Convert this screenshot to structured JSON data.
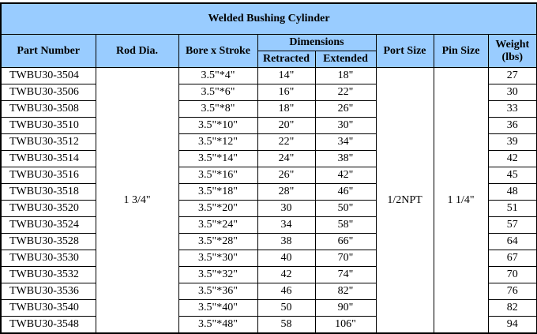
{
  "title": "Welded Bushing Cylinder",
  "headers": {
    "part_number": "Part Number",
    "rod_dia": "Rod Dia.",
    "bore_stroke": "Bore x Stroke",
    "dimensions": "Dimensions",
    "retracted": "Retracted",
    "extended": "Extended",
    "port_size": "Port Size",
    "pin_size": "Pin Size",
    "weight": "Weight",
    "weight_unit": "(lbs)"
  },
  "shared": {
    "rod_dia": "1 3/4\"",
    "port_size": "1/2NPT",
    "pin_size": "1 1/4\""
  },
  "rows": [
    {
      "part": "TWBU30-3504",
      "bore": "3.5\"*4\"",
      "ret": "14\"",
      "ext": "18\"",
      "wt": "27"
    },
    {
      "part": "TWBU30-3506",
      "bore": "3.5\"*6\"",
      "ret": "16\"",
      "ext": "22\"",
      "wt": "30"
    },
    {
      "part": "TWBU30-3508",
      "bore": "3.5\"*8\"",
      "ret": "18\"",
      "ext": "26\"",
      "wt": "33"
    },
    {
      "part": "TWBU30-3510",
      "bore": "3.5\"*10\"",
      "ret": "20\"",
      "ext": "30\"",
      "wt": "36"
    },
    {
      "part": "TWBU30-3512",
      "bore": "3.5\"*12\"",
      "ret": "22\"",
      "ext": "34\"",
      "wt": "39"
    },
    {
      "part": "TWBU30-3514",
      "bore": "3.5\"*14\"",
      "ret": "24\"",
      "ext": "38\"",
      "wt": "42"
    },
    {
      "part": "TWBU30-3516",
      "bore": "3.5\"*16\"",
      "ret": "26\"",
      "ext": "42\"",
      "wt": "45"
    },
    {
      "part": "TWBU30-3518",
      "bore": "3.5\"*18\"",
      "ret": "28\"",
      "ext": "46\"",
      "wt": "48"
    },
    {
      "part": "TWBU30-3520",
      "bore": "3.5\"*20\"",
      "ret": "30",
      "ext": "50\"",
      "wt": "51"
    },
    {
      "part": "TWBU30-3524",
      "bore": "3.5\"*24\"",
      "ret": "34",
      "ext": "58\"",
      "wt": "57"
    },
    {
      "part": "TWBU30-3528",
      "bore": "3.5\"*28\"",
      "ret": "38",
      "ext": "66\"",
      "wt": "64"
    },
    {
      "part": "TWBU30-3530",
      "bore": "3.5\"*30\"",
      "ret": "40",
      "ext": "70\"",
      "wt": "67"
    },
    {
      "part": "TWBU30-3532",
      "bore": "3.5\"*32\"",
      "ret": "42",
      "ext": "74\"",
      "wt": "70"
    },
    {
      "part": "TWBU30-3536",
      "bore": "3.5\"*36\"",
      "ret": "46",
      "ext": "82\"",
      "wt": "76"
    },
    {
      "part": "TWBU30-3540",
      "bore": "3.5\"*40\"",
      "ret": "50",
      "ext": "90\"",
      "wt": "82"
    },
    {
      "part": "TWBU30-3548",
      "bore": "3.5\"*48\"",
      "ret": "58",
      "ext": "106\"",
      "wt": "94"
    }
  ],
  "colors": {
    "header_bg": "#99ccff"
  }
}
